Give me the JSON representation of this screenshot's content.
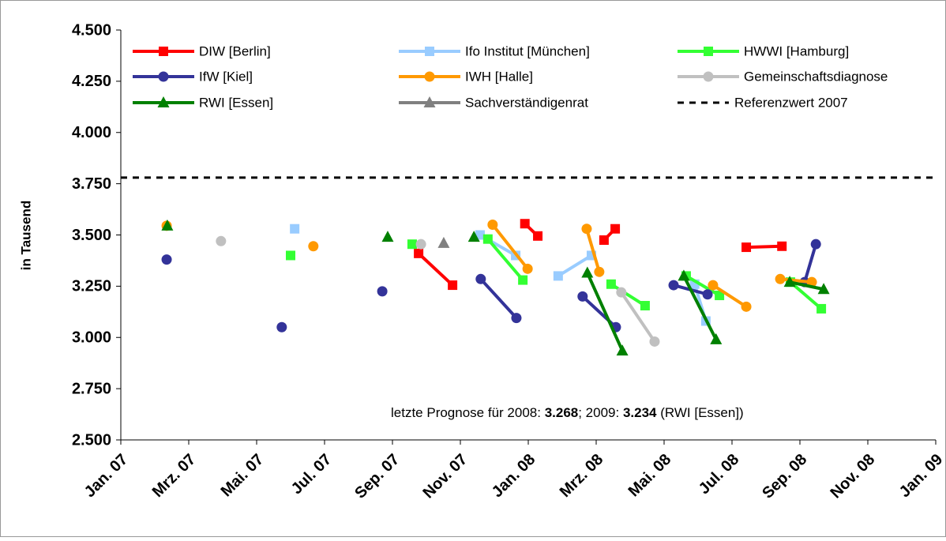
{
  "chart_data": {
    "type": "line",
    "y_label": "in Tausend",
    "xlim": [
      0,
      24
    ],
    "xticks": [
      {
        "value": 0,
        "label": "Jan. 07"
      },
      {
        "value": 2,
        "label": "Mrz. 07"
      },
      {
        "value": 4,
        "label": "Mai. 07"
      },
      {
        "value": 6,
        "label": "Jul. 07"
      },
      {
        "value": 8,
        "label": "Sep. 07"
      },
      {
        "value": 10,
        "label": "Nov. 07"
      },
      {
        "value": 12,
        "label": "Jan. 08"
      },
      {
        "value": 14,
        "label": "Mrz. 08"
      },
      {
        "value": 16,
        "label": "Mai. 08"
      },
      {
        "value": 18,
        "label": "Jul. 08"
      },
      {
        "value": 20,
        "label": "Sep. 08"
      },
      {
        "value": 22,
        "label": "Nov. 08"
      },
      {
        "value": 24,
        "label": "Jan. 09"
      }
    ],
    "ylim": [
      2.5,
      4.5
    ],
    "yticks": [
      {
        "value": 2.5,
        "label": "2.500"
      },
      {
        "value": 2.75,
        "label": "2.750"
      },
      {
        "value": 3,
        "label": "3.000"
      },
      {
        "value": 3.25,
        "label": "3.250"
      },
      {
        "value": 3.5,
        "label": "3.500"
      },
      {
        "value": 3.75,
        "label": "3.750"
      },
      {
        "value": 4,
        "label": "4.000"
      },
      {
        "value": 4.25,
        "label": "4.250"
      },
      {
        "value": 4.5,
        "label": "4.500"
      }
    ],
    "grid": false,
    "series": [
      {
        "name": "DIW [Berlin]",
        "color": "#ff0000",
        "marker": "square",
        "x": [
          8.77,
          9.77,
          null,
          11.9,
          12.28,
          null,
          14.23,
          14.56,
          null,
          18.42,
          19.47
        ],
        "values": [
          3.41,
          3.255,
          null,
          3.555,
          3.495,
          null,
          3.475,
          3.53,
          null,
          3.44,
          3.445
        ]
      },
      {
        "name": "Ifo Institut [München]",
        "color": "#99ccff",
        "marker": "square",
        "x": [
          5.12,
          null,
          10.58,
          11.63,
          null,
          12.88,
          13.86,
          null,
          16.9,
          17.23
        ],
        "values": [
          3.53,
          null,
          3.5,
          3.4,
          null,
          3.3,
          3.4,
          null,
          3.26,
          3.08
        ]
      },
      {
        "name": "HWWI [Hamburg]",
        "color": "#33ff33",
        "marker": "square",
        "x": [
          5.0,
          null,
          8.58,
          null,
          10.81,
          11.84,
          null,
          14.44,
          15.44,
          null,
          16.65,
          17.63,
          null,
          19.72,
          20.63
        ],
        "values": [
          3.4,
          null,
          3.455,
          null,
          3.48,
          3.28,
          null,
          3.26,
          3.155,
          null,
          3.3,
          3.205,
          null,
          3.27,
          3.14
        ]
      },
      {
        "name": "IfW [Kiel]",
        "color": "#333399",
        "marker": "circle",
        "x": [
          1.35,
          null,
          4.74,
          null,
          7.7,
          null,
          10.6,
          11.65,
          null,
          13.6,
          14.58,
          null,
          16.28,
          17.28,
          null,
          20.14,
          20.47
        ],
        "values": [
          3.38,
          null,
          3.05,
          null,
          3.225,
          null,
          3.285,
          3.095,
          null,
          3.2,
          3.05,
          null,
          3.255,
          3.21,
          null,
          3.27,
          3.455
        ]
      },
      {
        "name": "IWH [Halle]",
        "color": "#ff9900",
        "marker": "circle",
        "x": [
          1.35,
          null,
          5.67,
          null,
          10.95,
          11.98,
          null,
          13.72,
          14.09,
          null,
          17.44,
          18.42,
          null,
          19.42,
          20.35
        ],
        "values": [
          3.545,
          null,
          3.445,
          null,
          3.55,
          3.335,
          null,
          3.53,
          3.32,
          null,
          3.255,
          3.15,
          null,
          3.285,
          3.27
        ]
      },
      {
        "name": "Gemeinschaftsdiagnose",
        "color": "#c0c0c0",
        "marker": "circle",
        "x": [
          2.95,
          null,
          8.84,
          null,
          14.74,
          15.72
        ],
        "values": [
          3.47,
          null,
          3.455,
          null,
          3.22,
          2.98
        ]
      },
      {
        "name": "RWI [Essen]",
        "color": "#008000",
        "marker": "triangle",
        "x": [
          1.37,
          null,
          7.86,
          null,
          10.4,
          null,
          13.74,
          14.77,
          null,
          16.58,
          17.53,
          null,
          19.7,
          20.7
        ],
        "values": [
          3.545,
          null,
          3.49,
          null,
          3.49,
          null,
          3.315,
          2.935,
          null,
          3.3,
          2.99,
          null,
          3.27,
          3.235
        ]
      },
      {
        "name": "Sachverständigenrat",
        "color": "#808080",
        "marker": "triangle",
        "x": [
          9.51
        ],
        "values": [
          3.46
        ]
      }
    ],
    "reference_line": {
      "name": "Referenzwert 2007",
      "value": 3.78,
      "color": "#000000"
    },
    "annotation": [
      "letzte Prognose für 2008: ",
      "3.268",
      "; 2009: ",
      "3.234",
      " (RWI [Essen])"
    ]
  }
}
